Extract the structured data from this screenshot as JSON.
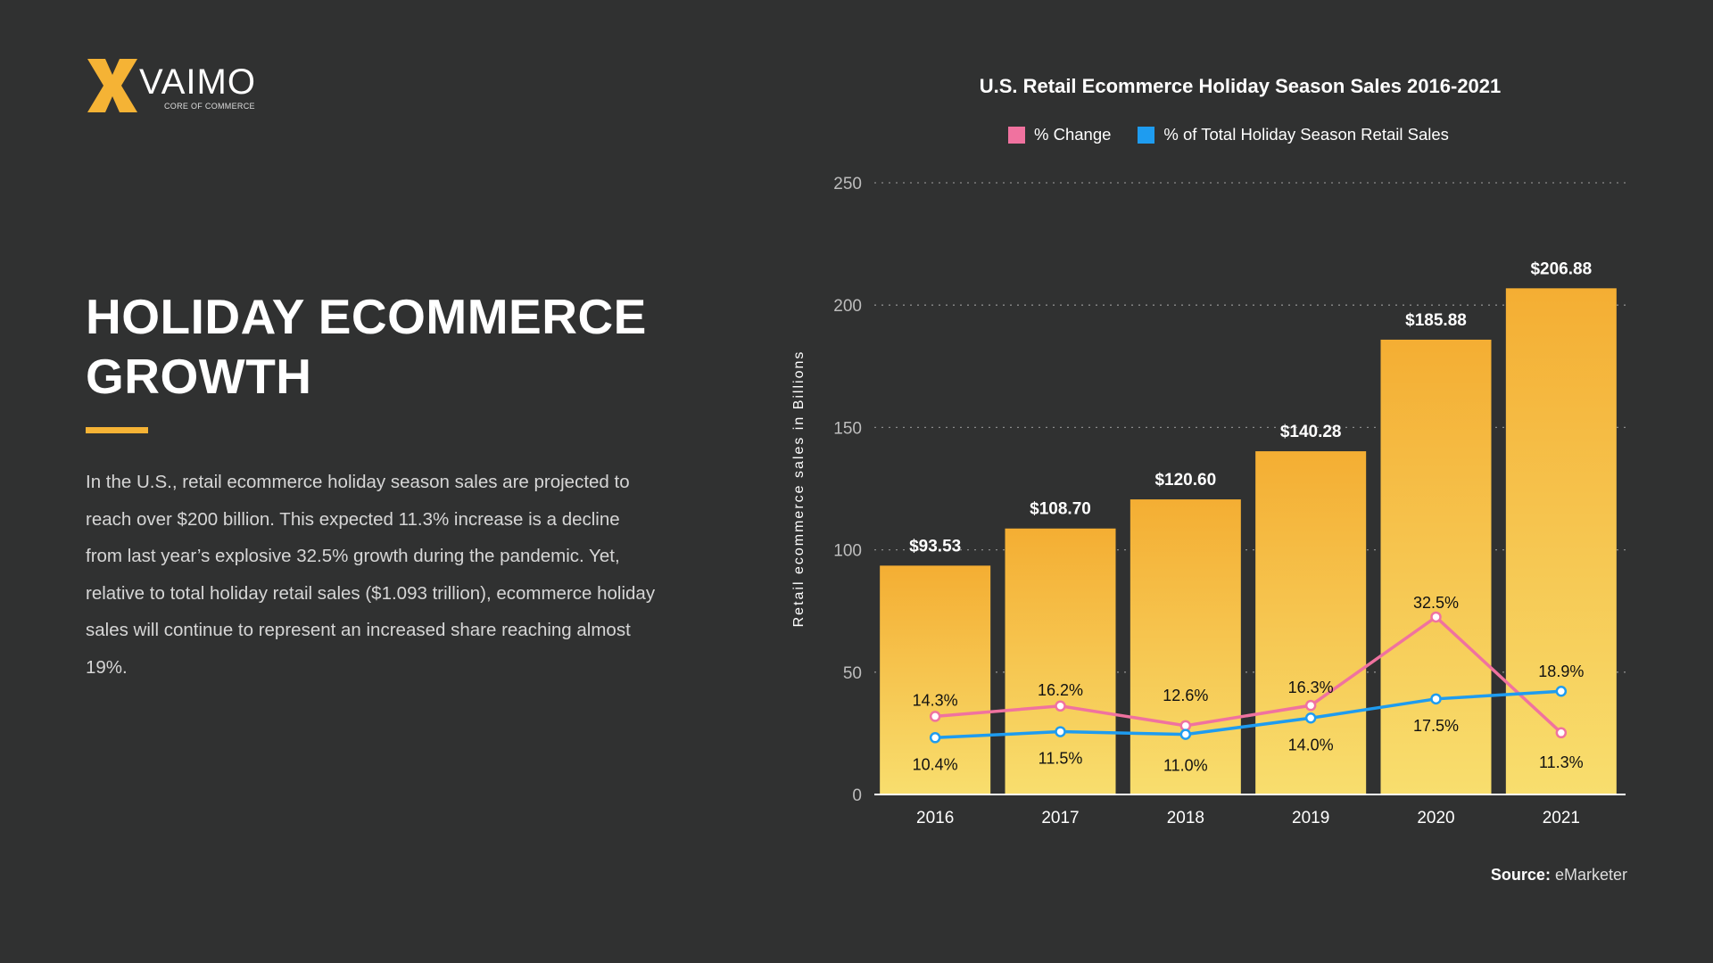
{
  "logo": {
    "text": "VAIMO",
    "tagline": "CORE OF COMMERCE"
  },
  "headline": "HOLIDAY ECOMMERCE GROWTH",
  "body": "In the U.S., retail ecommerce holiday season sales are projected to reach over $200 billion. This expected 11.3% increase is a decline from last year’s explosive 32.5% growth during the pandemic. Yet, relative to total holiday retail sales ($1.093 trillion), ecommerce holiday sales will continue to represent an increased share reaching almost 19%.",
  "source": {
    "label": "Source:",
    "value": "eMarketer"
  },
  "colors": {
    "background": "#303131",
    "bar_top": "#f4ae33",
    "bar_bottom": "#f8dd6c",
    "pct_change": "#f0729f",
    "pct_total": "#1e9cf0",
    "accent": "#f5b335"
  },
  "chart_data": {
    "type": "bar",
    "title": "U.S. Retail Ecommerce Holiday Season Sales 2016-2021",
    "ylabel": "Retail ecommerce sales in Billions",
    "xlabel": "",
    "ylim": [
      0,
      250
    ],
    "yticks": [
      "0",
      "50",
      "100",
      "150",
      "200",
      "250"
    ],
    "grid": true,
    "legend_placement": "top",
    "categories": [
      "2016",
      "2017",
      "2018",
      "2019",
      "2020",
      "2021"
    ],
    "values": [
      93.53,
      108.7,
      120.6,
      140.28,
      185.88,
      206.88
    ],
    "value_labels": [
      "$93.53",
      "$108.70",
      "$120.60",
      "$140.28",
      "$185.88",
      "$206.88"
    ],
    "line_series": [
      {
        "name": "% Change",
        "values": [
          14.3,
          16.2,
          12.6,
          16.3,
          32.5,
          11.3
        ],
        "labels": [
          "14.3%",
          "16.2%",
          "12.6%",
          "16.3%",
          "32.5%",
          "11.3%"
        ]
      },
      {
        "name": "% of Total Holiday Season Retail Sales",
        "values": [
          10.4,
          11.5,
          11.0,
          14.0,
          17.5,
          18.9
        ],
        "labels": [
          "10.4%",
          "11.5%",
          "11.0%",
          "14.0%",
          "17.5%",
          "18.9%"
        ]
      }
    ]
  }
}
